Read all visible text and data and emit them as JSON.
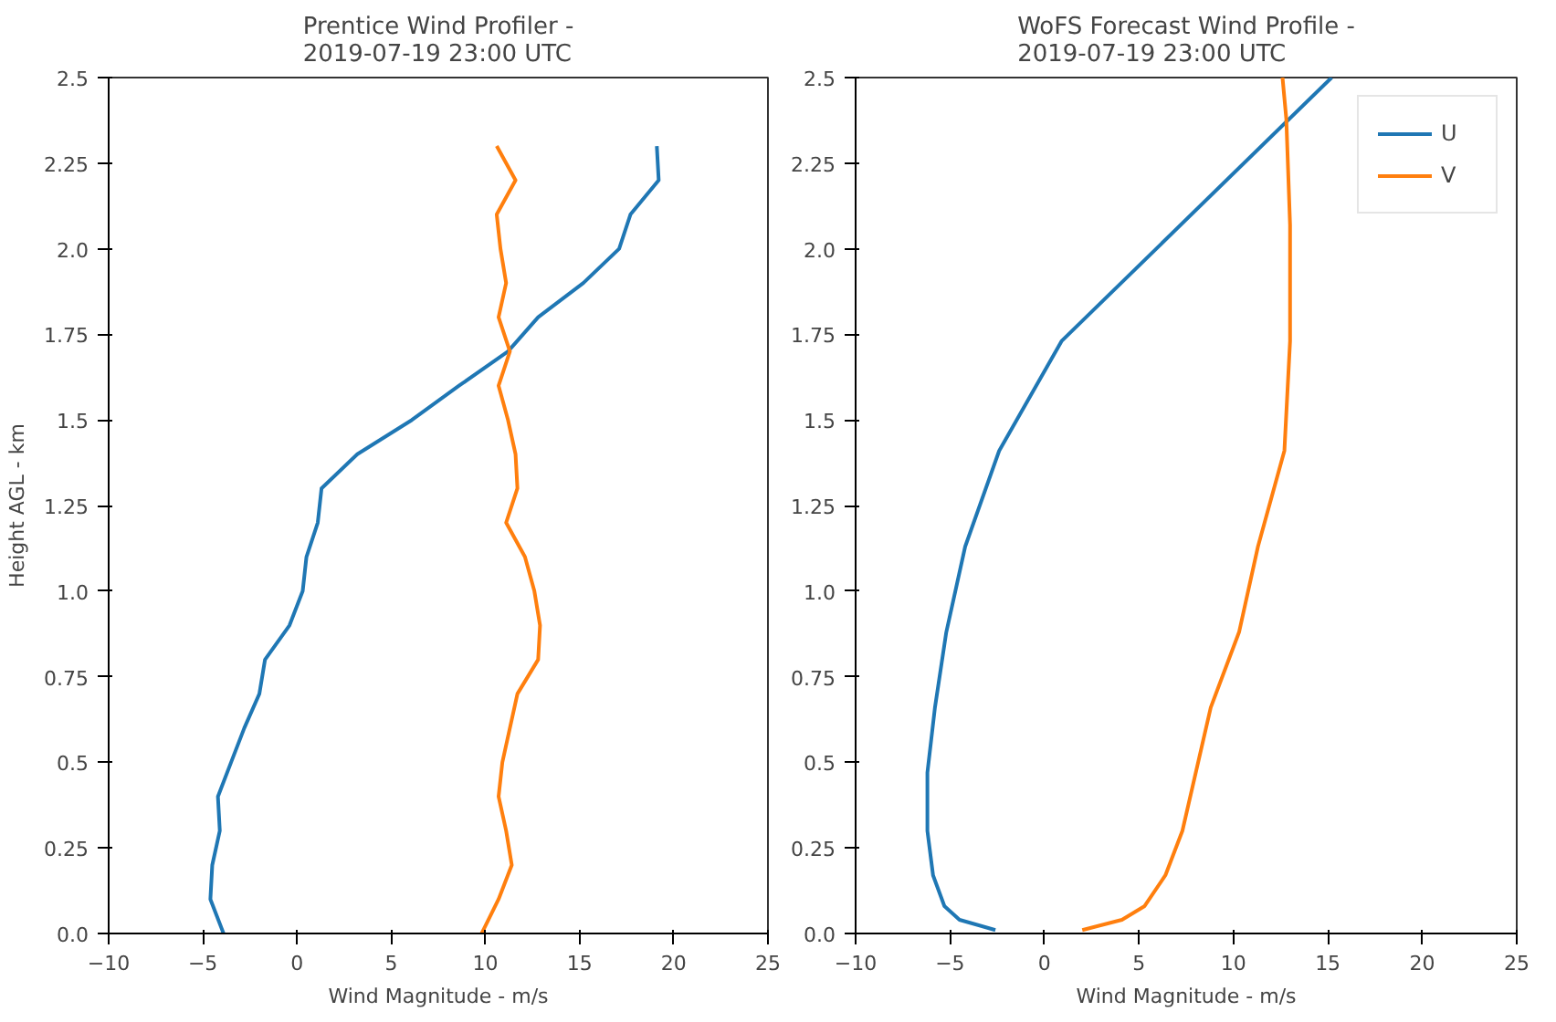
{
  "chart_data": [
    {
      "type": "line",
      "title": "Prentice Wind Profiler -\n2019-07-19 23:00 UTC",
      "xlabel": "Wind Magnitude - m/s",
      "ylabel": "Height AGL - km",
      "xlim": [
        -10,
        25
      ],
      "xticks": [
        -10,
        -5,
        0,
        5,
        10,
        15,
        20,
        25
      ],
      "ylim": [
        0,
        2.5
      ],
      "yticks": [
        {
          "value": 0,
          "label": "0.0"
        },
        0.25,
        0.5,
        0.75,
        {
          "value": 1,
          "label": "1.0"
        },
        1.25,
        1.5,
        1.75,
        {
          "value": 2,
          "label": "2.0"
        },
        2.25,
        2.5
      ],
      "grid": false,
      "legend": false,
      "series": [
        {
          "color": "#1f77b4",
          "x": [
            -3.9,
            -4.6,
            -4.5,
            -4.1,
            -4.2,
            -3.5,
            -2.8,
            -2.0,
            -1.7,
            -0.4,
            0.3,
            0.5,
            1.1,
            1.3,
            3.2,
            6.1,
            8.6,
            11.2,
            12.8,
            15.2,
            17.1,
            17.7,
            19.2,
            19.1
          ],
          "values": [
            0,
            0.1,
            0.2,
            0.3,
            0.4,
            0.5,
            0.6,
            0.7,
            0.8,
            0.9,
            1.0,
            1.1,
            1.2,
            1.3,
            1.4,
            1.5,
            1.6,
            1.7,
            1.8,
            1.9,
            2.0,
            2.1,
            2.2,
            2.3
          ]
        },
        {
          "color": "#ff7f0e",
          "x": [
            9.8,
            10.7,
            11.4,
            11.1,
            10.7,
            10.9,
            11.3,
            11.7,
            12.8,
            12.9,
            12.6,
            12.1,
            11.1,
            11.7,
            11.6,
            11.2,
            10.7,
            11.3,
            10.7,
            11.1,
            10.8,
            10.6,
            11.6,
            10.6
          ],
          "values": [
            0,
            0.1,
            0.2,
            0.3,
            0.4,
            0.5,
            0.6,
            0.7,
            0.8,
            0.9,
            1.0,
            1.1,
            1.2,
            1.3,
            1.4,
            1.5,
            1.6,
            1.7,
            1.8,
            1.9,
            2.0,
            2.1,
            2.2,
            2.3
          ]
        }
      ]
    },
    {
      "type": "line",
      "title": "WoFS Forecast Wind Profile -\n2019-07-19 23:00 UTC",
      "xlabel": "Wind Magnitude - m/s",
      "xlim": [
        -10,
        25
      ],
      "xticks": [
        -10,
        -5,
        0,
        5,
        10,
        15,
        20,
        25
      ],
      "ylim": [
        0,
        2.5
      ],
      "yticks": [
        {
          "value": 0,
          "label": "0.0"
        },
        0.25,
        0.5,
        0.75,
        {
          "value": 1,
          "label": "1.0"
        },
        1.25,
        1.5,
        1.75,
        {
          "value": 2,
          "label": "2.0"
        },
        2.25,
        2.5
      ],
      "grid": false,
      "legend": "top right",
      "series": [
        {
          "name": "U",
          "color": "#1f77b4",
          "x": [
            -2.6,
            -4.5,
            -5.3,
            -5.9,
            -6.2,
            -6.2,
            -5.8,
            -5.2,
            -4.2,
            -2.4,
            0.9,
            15.2
          ],
          "values": [
            0.01,
            0.04,
            0.08,
            0.17,
            0.3,
            0.47,
            0.66,
            0.88,
            1.13,
            1.41,
            1.73,
            2.5
          ]
        },
        {
          "name": "V",
          "color": "#ff7f0e",
          "x": [
            2.0,
            4.1,
            5.3,
            6.4,
            7.3,
            8.8,
            10.3,
            11.3,
            12.7,
            13.0,
            13.0,
            12.8,
            12.6
          ],
          "values": [
            0.01,
            0.04,
            0.08,
            0.17,
            0.3,
            0.66,
            0.88,
            1.13,
            1.41,
            1.73,
            2.07,
            2.38,
            2.5
          ]
        }
      ]
    }
  ]
}
